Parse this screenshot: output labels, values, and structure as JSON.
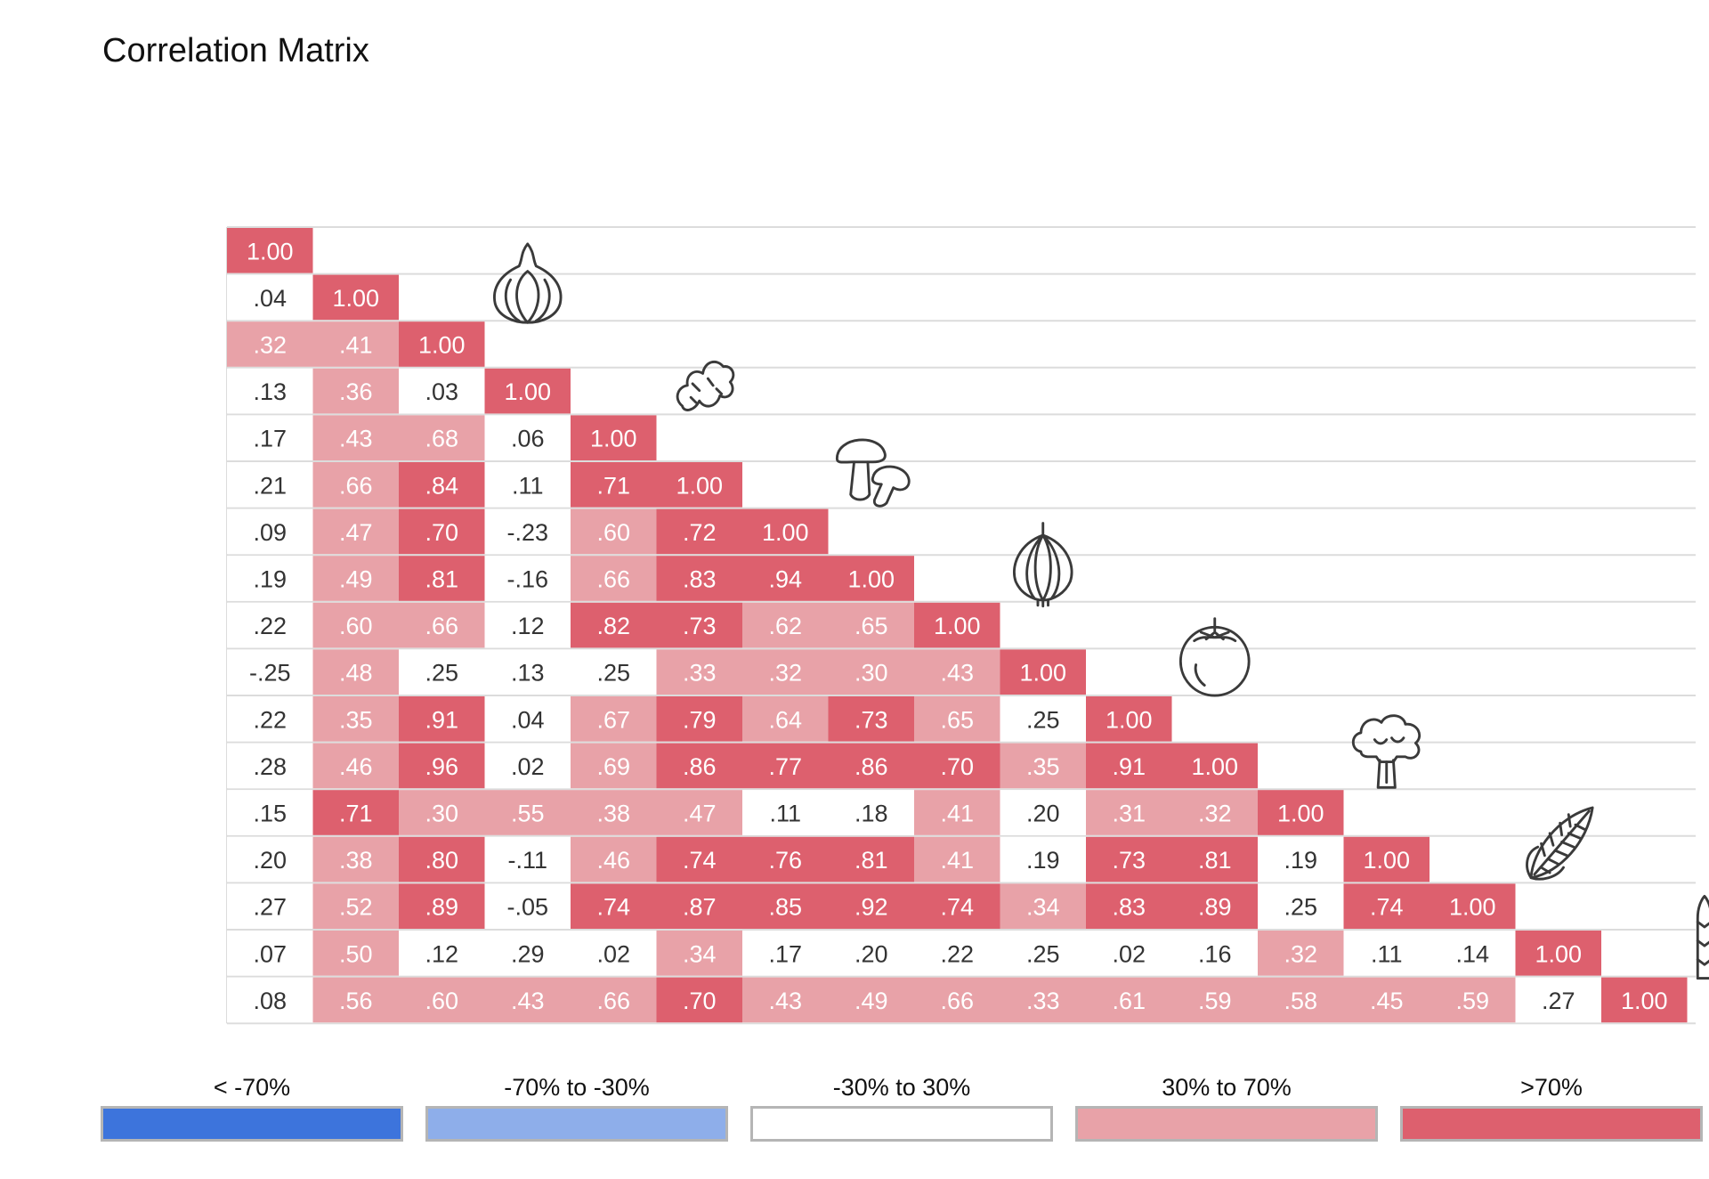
{
  "title": "Correlation Matrix",
  "chart_data": {
    "type": "heatmap",
    "title": "Correlation Matrix",
    "shape": "lower-triangular",
    "size": 17,
    "row_icons": [
      null,
      null,
      "garlic-icon",
      null,
      "ginger-icon",
      null,
      "mushroom-icon",
      null,
      "onion-icon",
      null,
      "tomato-icon",
      null,
      "broccoli-icon",
      null,
      "corn-icon",
      null,
      "asparagus-icon"
    ],
    "rows": [
      [
        "1.00"
      ],
      [
        ".04",
        "1.00"
      ],
      [
        ".32",
        ".41",
        "1.00"
      ],
      [
        ".13",
        ".36",
        ".03",
        "1.00"
      ],
      [
        ".17",
        ".43",
        ".68",
        ".06",
        "1.00"
      ],
      [
        ".21",
        ".66",
        ".84",
        ".11",
        ".71",
        "1.00"
      ],
      [
        ".09",
        ".47",
        ".70",
        "-.23",
        ".60",
        ".72",
        "1.00"
      ],
      [
        ".19",
        ".49",
        ".81",
        "-.16",
        ".66",
        ".83",
        ".94",
        "1.00"
      ],
      [
        ".22",
        ".60",
        ".66",
        ".12",
        ".82",
        ".73",
        ".62",
        ".65",
        "1.00"
      ],
      [
        "-.25",
        ".48",
        ".25",
        ".13",
        ".25",
        ".33",
        ".32",
        ".30",
        ".43",
        "1.00"
      ],
      [
        ".22",
        ".35",
        ".91",
        ".04",
        ".67",
        ".79",
        ".64",
        ".73",
        ".65",
        ".25",
        "1.00"
      ],
      [
        ".28",
        ".46",
        ".96",
        ".02",
        ".69",
        ".86",
        ".77",
        ".86",
        ".70",
        ".35",
        ".91",
        "1.00"
      ],
      [
        ".15",
        ".71",
        ".30",
        ".55",
        ".38",
        ".47",
        ".11",
        ".18",
        ".41",
        ".20",
        ".31",
        ".32",
        "1.00"
      ],
      [
        ".20",
        ".38",
        ".80",
        "-.11",
        ".46",
        ".74",
        ".76",
        ".81",
        ".41",
        ".19",
        ".73",
        ".81",
        ".19",
        "1.00"
      ],
      [
        ".27",
        ".52",
        ".89",
        "-.05",
        ".74",
        ".87",
        ".85",
        ".92",
        ".74",
        ".34",
        ".83",
        ".89",
        ".25",
        ".74",
        "1.00"
      ],
      [
        ".07",
        ".50",
        ".12",
        ".29",
        ".02",
        ".34",
        ".17",
        ".20",
        ".22",
        ".25",
        ".02",
        ".16",
        ".32",
        ".11",
        ".14",
        "1.00"
      ],
      [
        ".08",
        ".56",
        ".60",
        ".43",
        ".66",
        ".70",
        ".43",
        ".49",
        ".66",
        ".33",
        ".61",
        ".59",
        ".58",
        ".45",
        ".59",
        ".27",
        "1.00"
      ]
    ],
    "colors": {
      "strong_negative": "#3d74dc",
      "moderate_negative": "#8eaeea",
      "neutral": "#ffffff",
      "moderate_positive": "#e8a2a8",
      "strong_positive": "#dd606e"
    },
    "thresholds": {
      "strong": 0.7,
      "moderate": 0.3
    }
  },
  "legend": [
    {
      "label": "< -70%",
      "color": "#3d74dc"
    },
    {
      "label": "-70% to -30%",
      "color": "#8eaeea"
    },
    {
      "label": "-30% to 30%",
      "color": "#ffffff"
    },
    {
      "label": "30% to 70%",
      "color": "#e8a2a8"
    },
    {
      "label": ">70%",
      "color": "#dd606e"
    }
  ]
}
